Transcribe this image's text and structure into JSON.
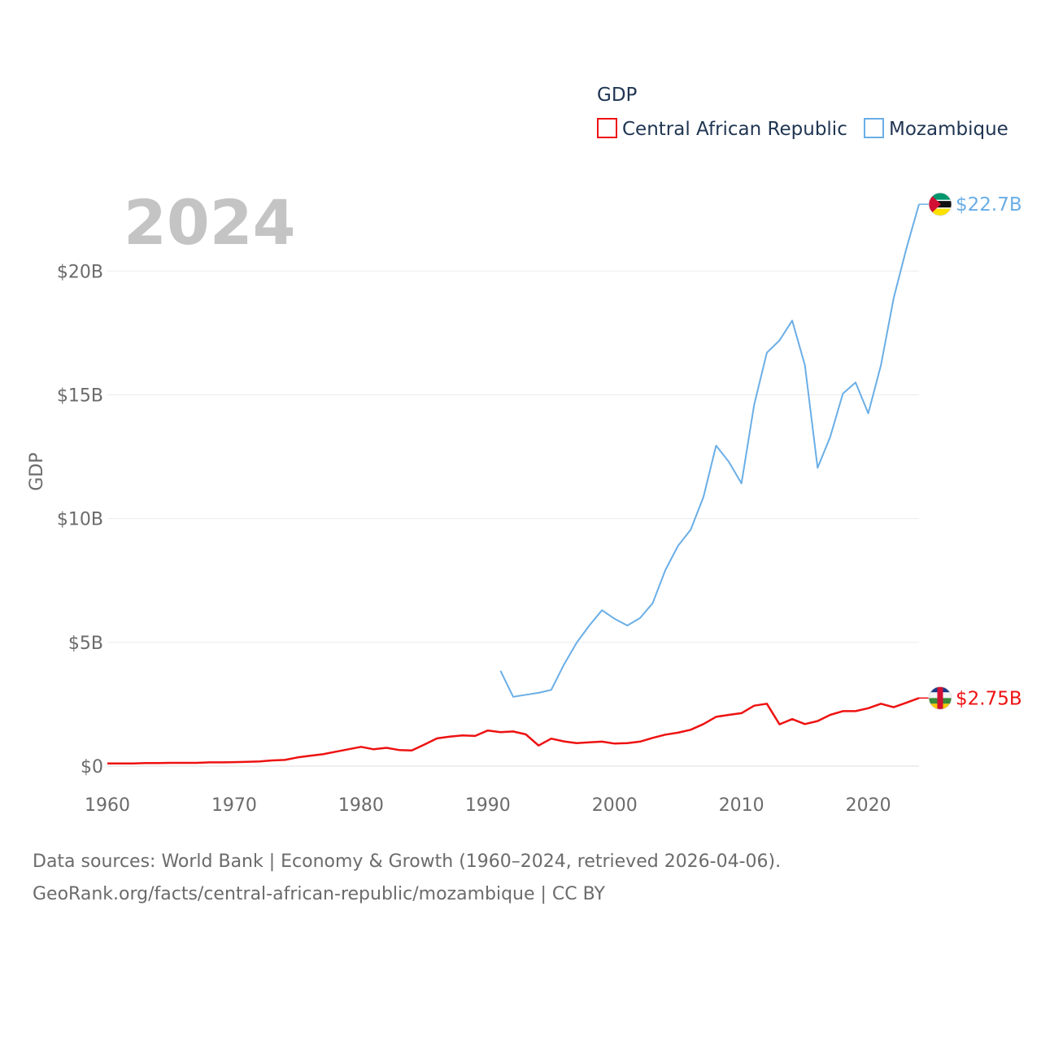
{
  "chart_data": {
    "type": "line",
    "title": "GDP",
    "highlight_year": "2024",
    "ylabel": "GDP",
    "xlabel": "",
    "xlim": [
      1960,
      2024
    ],
    "ylim": [
      0,
      23000000000
    ],
    "x_ticks": [
      1960,
      1970,
      1980,
      1990,
      2000,
      2010,
      2020
    ],
    "x_tick_labels": [
      "1960",
      "1970",
      "1980",
      "1990",
      "2000",
      "2010",
      "2020"
    ],
    "y_ticks": [
      0,
      5000000000,
      10000000000,
      15000000000,
      20000000000
    ],
    "y_tick_labels": [
      "$0",
      "$5B",
      "$10B",
      "$15B",
      "$20B"
    ],
    "legend_title": "GDP",
    "legend_position": "top-right",
    "series": [
      {
        "name": "Central African Republic",
        "color": "#ee1111",
        "end_label": "$2.75B",
        "flag_icon": "central-african-republic-flag-icon",
        "x": [
          1960,
          1961,
          1962,
          1963,
          1964,
          1965,
          1966,
          1967,
          1968,
          1969,
          1970,
          1971,
          1972,
          1973,
          1974,
          1975,
          1976,
          1977,
          1978,
          1979,
          1980,
          1981,
          1982,
          1983,
          1984,
          1985,
          1986,
          1987,
          1988,
          1989,
          1990,
          1991,
          1992,
          1993,
          1994,
          1995,
          1996,
          1997,
          1998,
          1999,
          2000,
          2001,
          2002,
          2003,
          2004,
          2005,
          2006,
          2007,
          2008,
          2009,
          2010,
          2011,
          2012,
          2013,
          2014,
          2015,
          2016,
          2017,
          2018,
          2019,
          2020,
          2021,
          2022,
          2023,
          2024
        ],
        "values": [
          0.11,
          0.11,
          0.11,
          0.12,
          0.12,
          0.13,
          0.13,
          0.13,
          0.15,
          0.15,
          0.16,
          0.17,
          0.19,
          0.23,
          0.25,
          0.35,
          0.42,
          0.48,
          0.58,
          0.68,
          0.78,
          0.68,
          0.74,
          0.65,
          0.63,
          0.87,
          1.12,
          1.19,
          1.24,
          1.22,
          1.44,
          1.37,
          1.4,
          1.28,
          0.83,
          1.11,
          1.0,
          0.93,
          0.96,
          0.99,
          0.91,
          0.93,
          0.99,
          1.14,
          1.27,
          1.35,
          1.47,
          1.7,
          1.99,
          2.07,
          2.14,
          2.44,
          2.52,
          1.69,
          1.9,
          1.7,
          1.82,
          2.07,
          2.22,
          2.22,
          2.34,
          2.52,
          2.38,
          2.56,
          2.75
        ]
      },
      {
        "name": "Mozambique",
        "color": "#6aaee6",
        "end_label": "$22.7B",
        "flag_icon": "mozambique-flag-icon",
        "x": [
          1991,
          1992,
          1993,
          1994,
          1995,
          1996,
          1997,
          1998,
          1999,
          2000,
          2001,
          2002,
          2003,
          2004,
          2005,
          2006,
          2007,
          2008,
          2009,
          2010,
          2011,
          2012,
          2013,
          2014,
          2015,
          2016,
          2017,
          2018,
          2019,
          2020,
          2021,
          2022,
          2023,
          2024
        ],
        "values": [
          3.85,
          2.8,
          2.88,
          2.96,
          3.08,
          4.1,
          4.98,
          5.68,
          6.3,
          5.95,
          5.68,
          5.98,
          6.58,
          7.92,
          8.9,
          9.55,
          10.87,
          12.95,
          12.3,
          11.42,
          14.6,
          16.7,
          17.2,
          18.0,
          16.2,
          12.05,
          13.3,
          15.05,
          15.5,
          14.25,
          16.2,
          18.9,
          20.9,
          22.7
        ]
      }
    ]
  },
  "footer": {
    "line1": "Data sources: World Bank | Economy & Growth (1960–2024, retrieved 2026-04-06).",
    "line2": "GeoRank.org/facts/central-african-republic/mozambique | CC BY"
  }
}
